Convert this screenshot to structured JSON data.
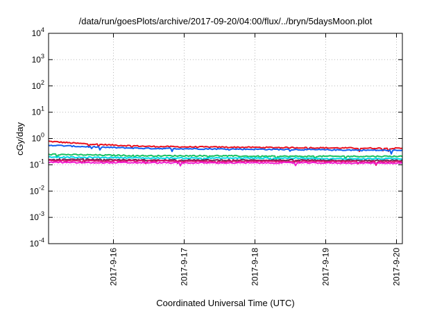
{
  "chart_data": {
    "type": "line",
    "title": "/data/run/goesPlots/archive/2017-09-20/04:00/flux/../bryn/5daysMoon.plot",
    "xlabel": "Coordinated Universal Time (UTC)",
    "ylabel": "cGy/day",
    "yscale": "log",
    "ylim": [
      0.0001,
      10000
    ],
    "xlim": [
      "2017-09-15 02:00",
      "2017-09-20 02:00"
    ],
    "grid": true,
    "y_ticks": [
      {
        "base": "10",
        "exp": "4",
        "value": 10000
      },
      {
        "base": "10",
        "exp": "3",
        "value": 1000
      },
      {
        "base": "10",
        "exp": "2",
        "value": 100
      },
      {
        "base": "10",
        "exp": "1",
        "value": 10
      },
      {
        "base": "10",
        "exp": "0",
        "value": 1
      },
      {
        "base": "10",
        "exp": "-1",
        "value": 0.1
      },
      {
        "base": "10",
        "exp": "-2",
        "value": 0.01
      },
      {
        "base": "10",
        "exp": "-3",
        "value": 0.001
      },
      {
        "base": "10",
        "exp": "-4",
        "value": 0.0001
      }
    ],
    "x_ticks": [
      {
        "label": "2017-9-16",
        "value": "2017-09-16 00:00"
      },
      {
        "label": "2017-9-17",
        "value": "2017-09-17 00:00"
      },
      {
        "label": "2017-9-18",
        "value": "2017-09-18 00:00"
      },
      {
        "label": "2017-9-19",
        "value": "2017-09-19 00:00"
      },
      {
        "label": "2017-9-20",
        "value": "2017-09-20 00:00"
      }
    ],
    "series": [
      {
        "color": "#e8101e",
        "x": [
          "2017-09-15 02:00",
          "2017-09-15 12:00",
          "2017-09-16 00:00",
          "2017-09-16 12:00",
          "2017-09-17 00:00",
          "2017-09-17 12:00",
          "2017-09-18 00:00",
          "2017-09-18 12:00",
          "2017-09-19 00:00",
          "2017-09-19 12:00",
          "2017-09-20 02:00"
        ],
        "y": [
          0.78,
          0.65,
          0.56,
          0.5,
          0.48,
          0.47,
          0.46,
          0.45,
          0.44,
          0.43,
          0.42
        ]
      },
      {
        "color": "#1060f0",
        "x": [
          "2017-09-15 02:00",
          "2017-09-15 12:00",
          "2017-09-16 00:00",
          "2017-09-16 12:00",
          "2017-09-17 00:00",
          "2017-09-17 12:00",
          "2017-09-18 00:00",
          "2017-09-18 12:00",
          "2017-09-19 00:00",
          "2017-09-19 12:00",
          "2017-09-20 02:00"
        ],
        "y": [
          0.56,
          0.5,
          0.45,
          0.42,
          0.41,
          0.4,
          0.39,
          0.38,
          0.37,
          0.36,
          0.35
        ]
      },
      {
        "color": "#18c060",
        "x": [
          "2017-09-15 02:00",
          "2017-09-15 12:00",
          "2017-09-16 00:00",
          "2017-09-16 12:00",
          "2017-09-17 00:00",
          "2017-09-17 12:00",
          "2017-09-18 00:00",
          "2017-09-18 12:00",
          "2017-09-19 00:00",
          "2017-09-19 12:00",
          "2017-09-20 02:00"
        ],
        "y": [
          0.25,
          0.24,
          0.23,
          0.22,
          0.22,
          0.22,
          0.21,
          0.21,
          0.21,
          0.21,
          0.21
        ]
      },
      {
        "color": "#00d8e8",
        "x": [
          "2017-09-15 02:00",
          "2017-09-15 12:00",
          "2017-09-16 00:00",
          "2017-09-16 12:00",
          "2017-09-17 00:00",
          "2017-09-17 12:00",
          "2017-09-18 00:00",
          "2017-09-18 12:00",
          "2017-09-19 00:00",
          "2017-09-19 12:00",
          "2017-09-20 02:00"
        ],
        "y": [
          0.2,
          0.19,
          0.19,
          0.18,
          0.18,
          0.18,
          0.18,
          0.18,
          0.17,
          0.17,
          0.17
        ]
      },
      {
        "color": "#6a2a50",
        "x": [
          "2017-09-15 02:00",
          "2017-09-15 12:00",
          "2017-09-16 00:00",
          "2017-09-16 12:00",
          "2017-09-17 00:00",
          "2017-09-17 12:00",
          "2017-09-18 00:00",
          "2017-09-18 12:00",
          "2017-09-19 00:00",
          "2017-09-19 12:00",
          "2017-09-20 02:00"
        ],
        "y": [
          0.16,
          0.16,
          0.155,
          0.15,
          0.15,
          0.15,
          0.15,
          0.15,
          0.15,
          0.145,
          0.145
        ]
      },
      {
        "color": "#e01070",
        "x": [
          "2017-09-15 02:00",
          "2017-09-15 12:00",
          "2017-09-16 00:00",
          "2017-09-16 12:00",
          "2017-09-17 00:00",
          "2017-09-17 12:00",
          "2017-09-18 00:00",
          "2017-09-18 12:00",
          "2017-09-19 00:00",
          "2017-09-19 12:00",
          "2017-09-20 02:00"
        ],
        "y": [
          0.145,
          0.14,
          0.14,
          0.14,
          0.135,
          0.135,
          0.135,
          0.135,
          0.135,
          0.13,
          0.13
        ]
      },
      {
        "color": "#f020d0",
        "x": [
          "2017-09-15 02:00",
          "2017-09-15 12:00",
          "2017-09-16 00:00",
          "2017-09-16 12:00",
          "2017-09-17 00:00",
          "2017-09-17 12:00",
          "2017-09-18 00:00",
          "2017-09-18 12:00",
          "2017-09-19 00:00",
          "2017-09-19 12:00",
          "2017-09-20 02:00"
        ],
        "y": [
          0.125,
          0.12,
          0.12,
          0.12,
          0.118,
          0.118,
          0.118,
          0.118,
          0.117,
          0.116,
          0.115
        ]
      }
    ]
  }
}
